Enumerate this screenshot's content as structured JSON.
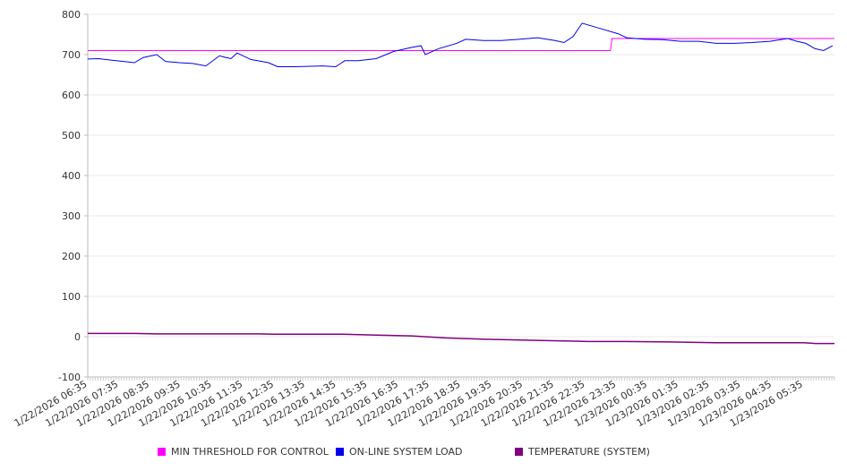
{
  "chart_data": {
    "type": "line",
    "title": "",
    "xlabel": "",
    "ylabel": "",
    "ylim": [
      -100,
      800
    ],
    "yticks": [
      800,
      700,
      600,
      500,
      400,
      300,
      200,
      100,
      0,
      -100
    ],
    "x_unit": "hours since 1/22/2026 06:35",
    "xlim": [
      0,
      24
    ],
    "xtick_labels": [
      "1/22/2026 06:35",
      "1/22/2026 07:35",
      "1/22/2026 08:35",
      "1/22/2026 09:35",
      "1/22/2026 10:35",
      "1/22/2026 11:35",
      "1/22/2026 12:35",
      "1/22/2026 13:35",
      "1/22/2026 14:35",
      "1/22/2026 15:35",
      "1/22/2026 16:35",
      "1/22/2026 17:35",
      "1/22/2026 18:35",
      "1/22/2026 19:35",
      "1/22/2026 20:35",
      "1/22/2026 21:35",
      "1/22/2026 22:35",
      "1/22/2026 23:35",
      "1/23/2026 00:35",
      "1/23/2026 01:35",
      "1/23/2026 02:35",
      "1/23/2026 03:35",
      "1/23/2026 04:35",
      "1/23/2026 05:35"
    ],
    "grid": true,
    "legend_position": "bottom",
    "series": [
      {
        "name": "MIN THRESHOLD FOR CONTROL",
        "color": "#ff00ff",
        "x": [
          0,
          16.8,
          16.85,
          24
        ],
        "y": [
          710,
          710,
          740,
          740
        ]
      },
      {
        "name": "ON-LINE SYSTEM LOAD",
        "color": "#0000ee",
        "x": [
          0,
          0.35,
          0.92,
          1.5,
          1.78,
          2.22,
          2.5,
          2.94,
          3.37,
          3.8,
          4.23,
          4.6,
          4.8,
          5.24,
          5.81,
          6.1,
          6.68,
          7.54,
          7.97,
          8.26,
          8.69,
          9.27,
          9.84,
          10.42,
          10.71,
          10.85,
          11.28,
          11.86,
          12.14,
          12.72,
          13.29,
          13.87,
          14.45,
          15.02,
          15.31,
          15.6,
          15.89,
          16.47,
          17.04,
          17.32,
          17.9,
          18.47,
          19.05,
          19.63,
          20.2,
          20.78,
          21.35,
          21.93,
          22.5,
          22.79,
          23.08,
          23.37,
          23.65,
          23.94
        ],
        "y": [
          689,
          690,
          685,
          680,
          693,
          700,
          683,
          680,
          678,
          672,
          697,
          690,
          704,
          688,
          680,
          670,
          670,
          672,
          670,
          685,
          685,
          690,
          708,
          718,
          722,
          700,
          715,
          728,
          738,
          735,
          735,
          738,
          742,
          735,
          730,
          745,
          778,
          765,
          752,
          742,
          738,
          737,
          733,
          733,
          728,
          728,
          730,
          733,
          740,
          733,
          728,
          715,
          710,
          722
        ]
      },
      {
        "name": "TEMPERATURE (SYSTEM)",
        "color": "#800080",
        "x": [
          0,
          1.5,
          2.2,
          5.5,
          6,
          8.2,
          9.3,
          10.4,
          11.5,
          12.7,
          14.4,
          15.5,
          16.1,
          17.3,
          18.7,
          20.2,
          23.0,
          23.4,
          24
        ],
        "y": [
          8,
          8,
          7,
          7,
          6,
          6,
          4,
          2,
          -3,
          -6,
          -9,
          -11,
          -12,
          -12,
          -13,
          -15,
          -15,
          -17,
          -17
        ]
      }
    ]
  }
}
